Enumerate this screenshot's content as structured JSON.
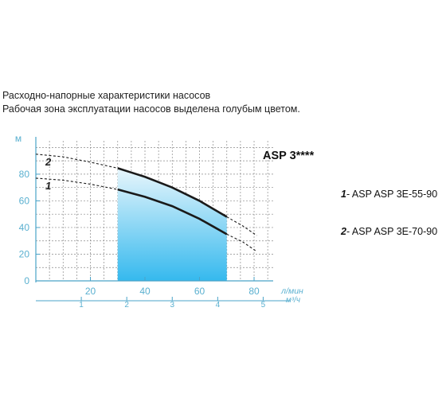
{
  "header": {
    "line1": "Расходно-напорные характеристики насосов",
    "line2": "Рабочая зона эксплуатации насосов выделена голубым цветом."
  },
  "chart_data": {
    "type": "line",
    "title": "ASP 3****",
    "ylabel": "м",
    "xlabel": "л/мин",
    "x2label": "м³/ч",
    "ylim": [
      0,
      105
    ],
    "xlim": [
      0,
      87
    ],
    "y_ticks": [
      "0",
      "20",
      "40",
      "60",
      "80"
    ],
    "x_ticks": [
      "20",
      "40",
      "60",
      "80"
    ],
    "x2_ticks": [
      "1",
      "2",
      "3",
      "4",
      "5"
    ],
    "grid": true,
    "colors": {
      "axis": "#4aa3c8",
      "ticks": "#5ab0d0",
      "curve": "#1a1a1a"
    },
    "working_zone": {
      "x_range": [
        30,
        70
      ],
      "color_top": "#e8f6fc",
      "color_bottom": "#35b9ee"
    },
    "series": [
      {
        "name": "1",
        "dashed": [
          [
            0,
            77
          ],
          [
            10,
            75.5
          ],
          [
            20,
            72.5
          ],
          [
            30,
            68.5
          ]
        ],
        "solid": [
          [
            30,
            68.5
          ],
          [
            40,
            63
          ],
          [
            50,
            56
          ],
          [
            60,
            46.5
          ],
          [
            70,
            35
          ]
        ],
        "dashed_end": [
          [
            70,
            35
          ],
          [
            76,
            29
          ],
          [
            81,
            22
          ]
        ]
      },
      {
        "name": "2",
        "dashed": [
          [
            0,
            95
          ],
          [
            10,
            93
          ],
          [
            20,
            89
          ],
          [
            30,
            84.5
          ]
        ],
        "solid": [
          [
            30,
            84.5
          ],
          [
            40,
            78
          ],
          [
            50,
            70
          ],
          [
            60,
            60
          ],
          [
            70,
            48
          ]
        ],
        "dashed_end": [
          [
            70,
            48
          ],
          [
            76,
            41
          ],
          [
            81,
            34
          ]
        ]
      }
    ]
  },
  "legend": [
    {
      "num": "1",
      "text": "- ASP ASP 3E-55-90"
    },
    {
      "num": "2",
      "text": "- ASP ASP 3E-70-90"
    }
  ]
}
